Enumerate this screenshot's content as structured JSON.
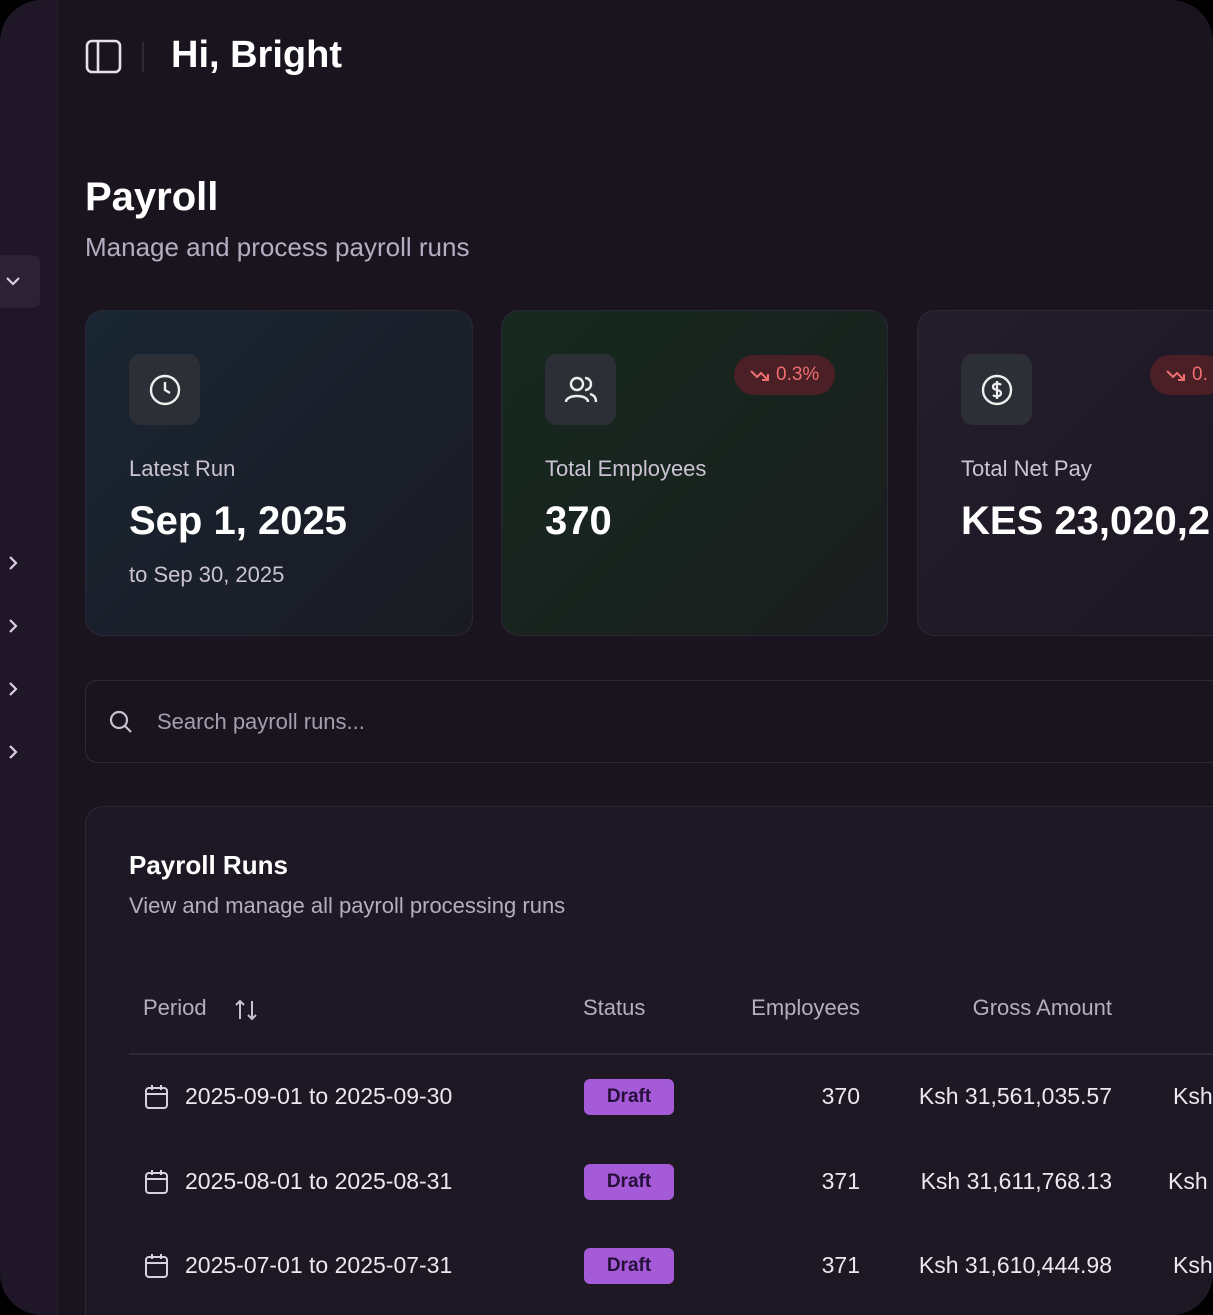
{
  "header": {
    "greeting": "Hi, Bright"
  },
  "page": {
    "title": "Payroll",
    "subtitle": "Manage and process payroll runs"
  },
  "cards": [
    {
      "label": "Latest Run",
      "value": "Sep 1, 2025",
      "note": "to Sep 30, 2025"
    },
    {
      "label": "Total Employees",
      "value": "370",
      "badge": "0.3%"
    },
    {
      "label": "Total Net Pay",
      "value": "KES 23,020,2",
      "badge": "0."
    }
  ],
  "search": {
    "placeholder": "Search payroll runs..."
  },
  "table": {
    "title": "Payroll Runs",
    "subtitle": "View and manage all payroll processing runs",
    "columns": [
      "Period",
      "Status",
      "Employees",
      "Gross Amount"
    ],
    "rows": [
      [
        "2025-09-01 to 2025-09-30",
        "Draft",
        "370",
        "Ksh 31,561,035.57",
        "Ksh"
      ],
      [
        "2025-08-01 to 2025-08-31",
        "Draft",
        "371",
        "Ksh 31,611,768.13",
        "Ksh"
      ],
      [
        "2025-07-01 to 2025-07-31",
        "Draft",
        "371",
        "Ksh 31,610,444.98",
        "Ksh"
      ]
    ]
  }
}
